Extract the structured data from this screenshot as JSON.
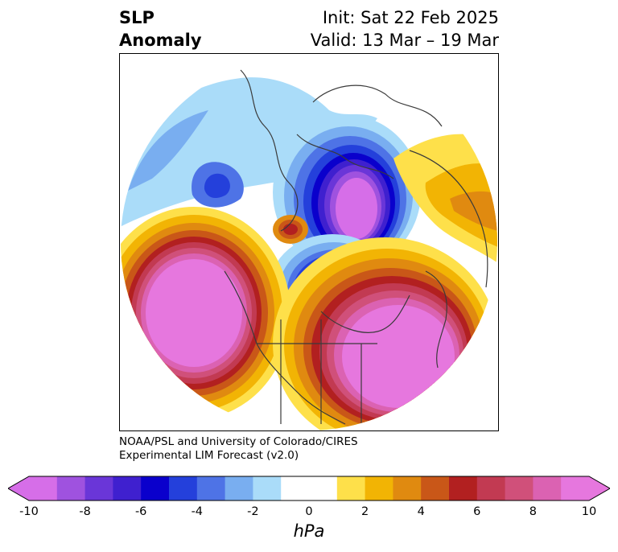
{
  "title": {
    "left_line1": "SLP",
    "left_line2": "Anomaly",
    "right_line1": "Init: Sat 22 Feb 2025",
    "right_line2": "Valid: 13 Mar – 19 Mar"
  },
  "credit": {
    "line1": "NOAA/PSL and University of Colorado/CIRES",
    "line2": "Experimental LIM Forecast (v2.0)"
  },
  "colorbar": {
    "unit": "hPa",
    "ticks": [
      "-10",
      "-8",
      "-6",
      "-4",
      "-2",
      "0",
      "2",
      "4",
      "6",
      "8",
      "10"
    ],
    "colors": [
      "#d66ee8",
      "#9f52df",
      "#6a36d8",
      "#3f20cf",
      "#0a00cc",
      "#2440db",
      "#4e73e6",
      "#79aef0",
      "#aadcf9",
      "#ffffff",
      "#ffffff",
      "#fee04a",
      "#f2b404",
      "#e08a10",
      "#c95718",
      "#b22020",
      "#c23a52",
      "#d0507a",
      "#db62b2",
      "#e677de"
    ],
    "extend_low": "#d66ee8",
    "extend_high": "#e677de"
  },
  "map": {
    "projection": "north-polar",
    "features": [
      {
        "name": "negative-anomaly-core",
        "value_hPa": -10,
        "location": "Arctic/Canadian archipelago"
      },
      {
        "name": "negative-anomaly-core",
        "value_hPa": -10,
        "location": "Barents-Kara / Eurasian Arctic"
      },
      {
        "name": "positive-anomaly-core",
        "value_hPa": 10,
        "location": "North Atlantic"
      },
      {
        "name": "positive-anomaly-core",
        "value_hPa": 10,
        "location": "North Pacific"
      }
    ]
  }
}
